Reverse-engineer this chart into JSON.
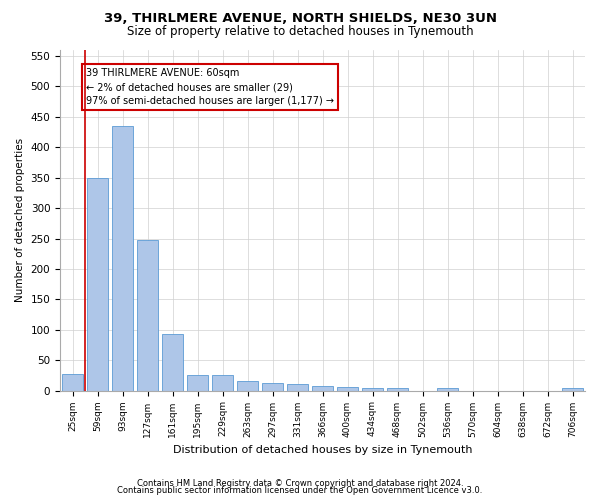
{
  "title": "39, THIRLMERE AVENUE, NORTH SHIELDS, NE30 3UN",
  "subtitle": "Size of property relative to detached houses in Tynemouth",
  "xlabel": "Distribution of detached houses by size in Tynemouth",
  "ylabel": "Number of detached properties",
  "categories": [
    "25sqm",
    "59sqm",
    "93sqm",
    "127sqm",
    "161sqm",
    "195sqm",
    "229sqm",
    "263sqm",
    "297sqm",
    "331sqm",
    "366sqm",
    "400sqm",
    "434sqm",
    "468sqm",
    "502sqm",
    "536sqm",
    "570sqm",
    "604sqm",
    "638sqm",
    "672sqm",
    "706sqm"
  ],
  "values": [
    27,
    350,
    435,
    248,
    93,
    25,
    25,
    15,
    13,
    10,
    8,
    6,
    5,
    5,
    0,
    5,
    0,
    0,
    0,
    0,
    5
  ],
  "bar_color": "#aec6e8",
  "bar_edge_color": "#5b9bd5",
  "red_line_x": 0.5,
  "annotation_text": "39 THIRLMERE AVENUE: 60sqm\n← 2% of detached houses are smaller (29)\n97% of semi-detached houses are larger (1,177) →",
  "annotation_box_color": "#ffffff",
  "annotation_box_edge": "#cc0000",
  "ylim": [
    0,
    560
  ],
  "yticks": [
    0,
    50,
    100,
    150,
    200,
    250,
    300,
    350,
    400,
    450,
    500,
    550
  ],
  "footer_line1": "Contains HM Land Registry data © Crown copyright and database right 2024.",
  "footer_line2": "Contains public sector information licensed under the Open Government Licence v3.0.",
  "bg_color": "#ffffff",
  "grid_color": "#d0d0d0"
}
